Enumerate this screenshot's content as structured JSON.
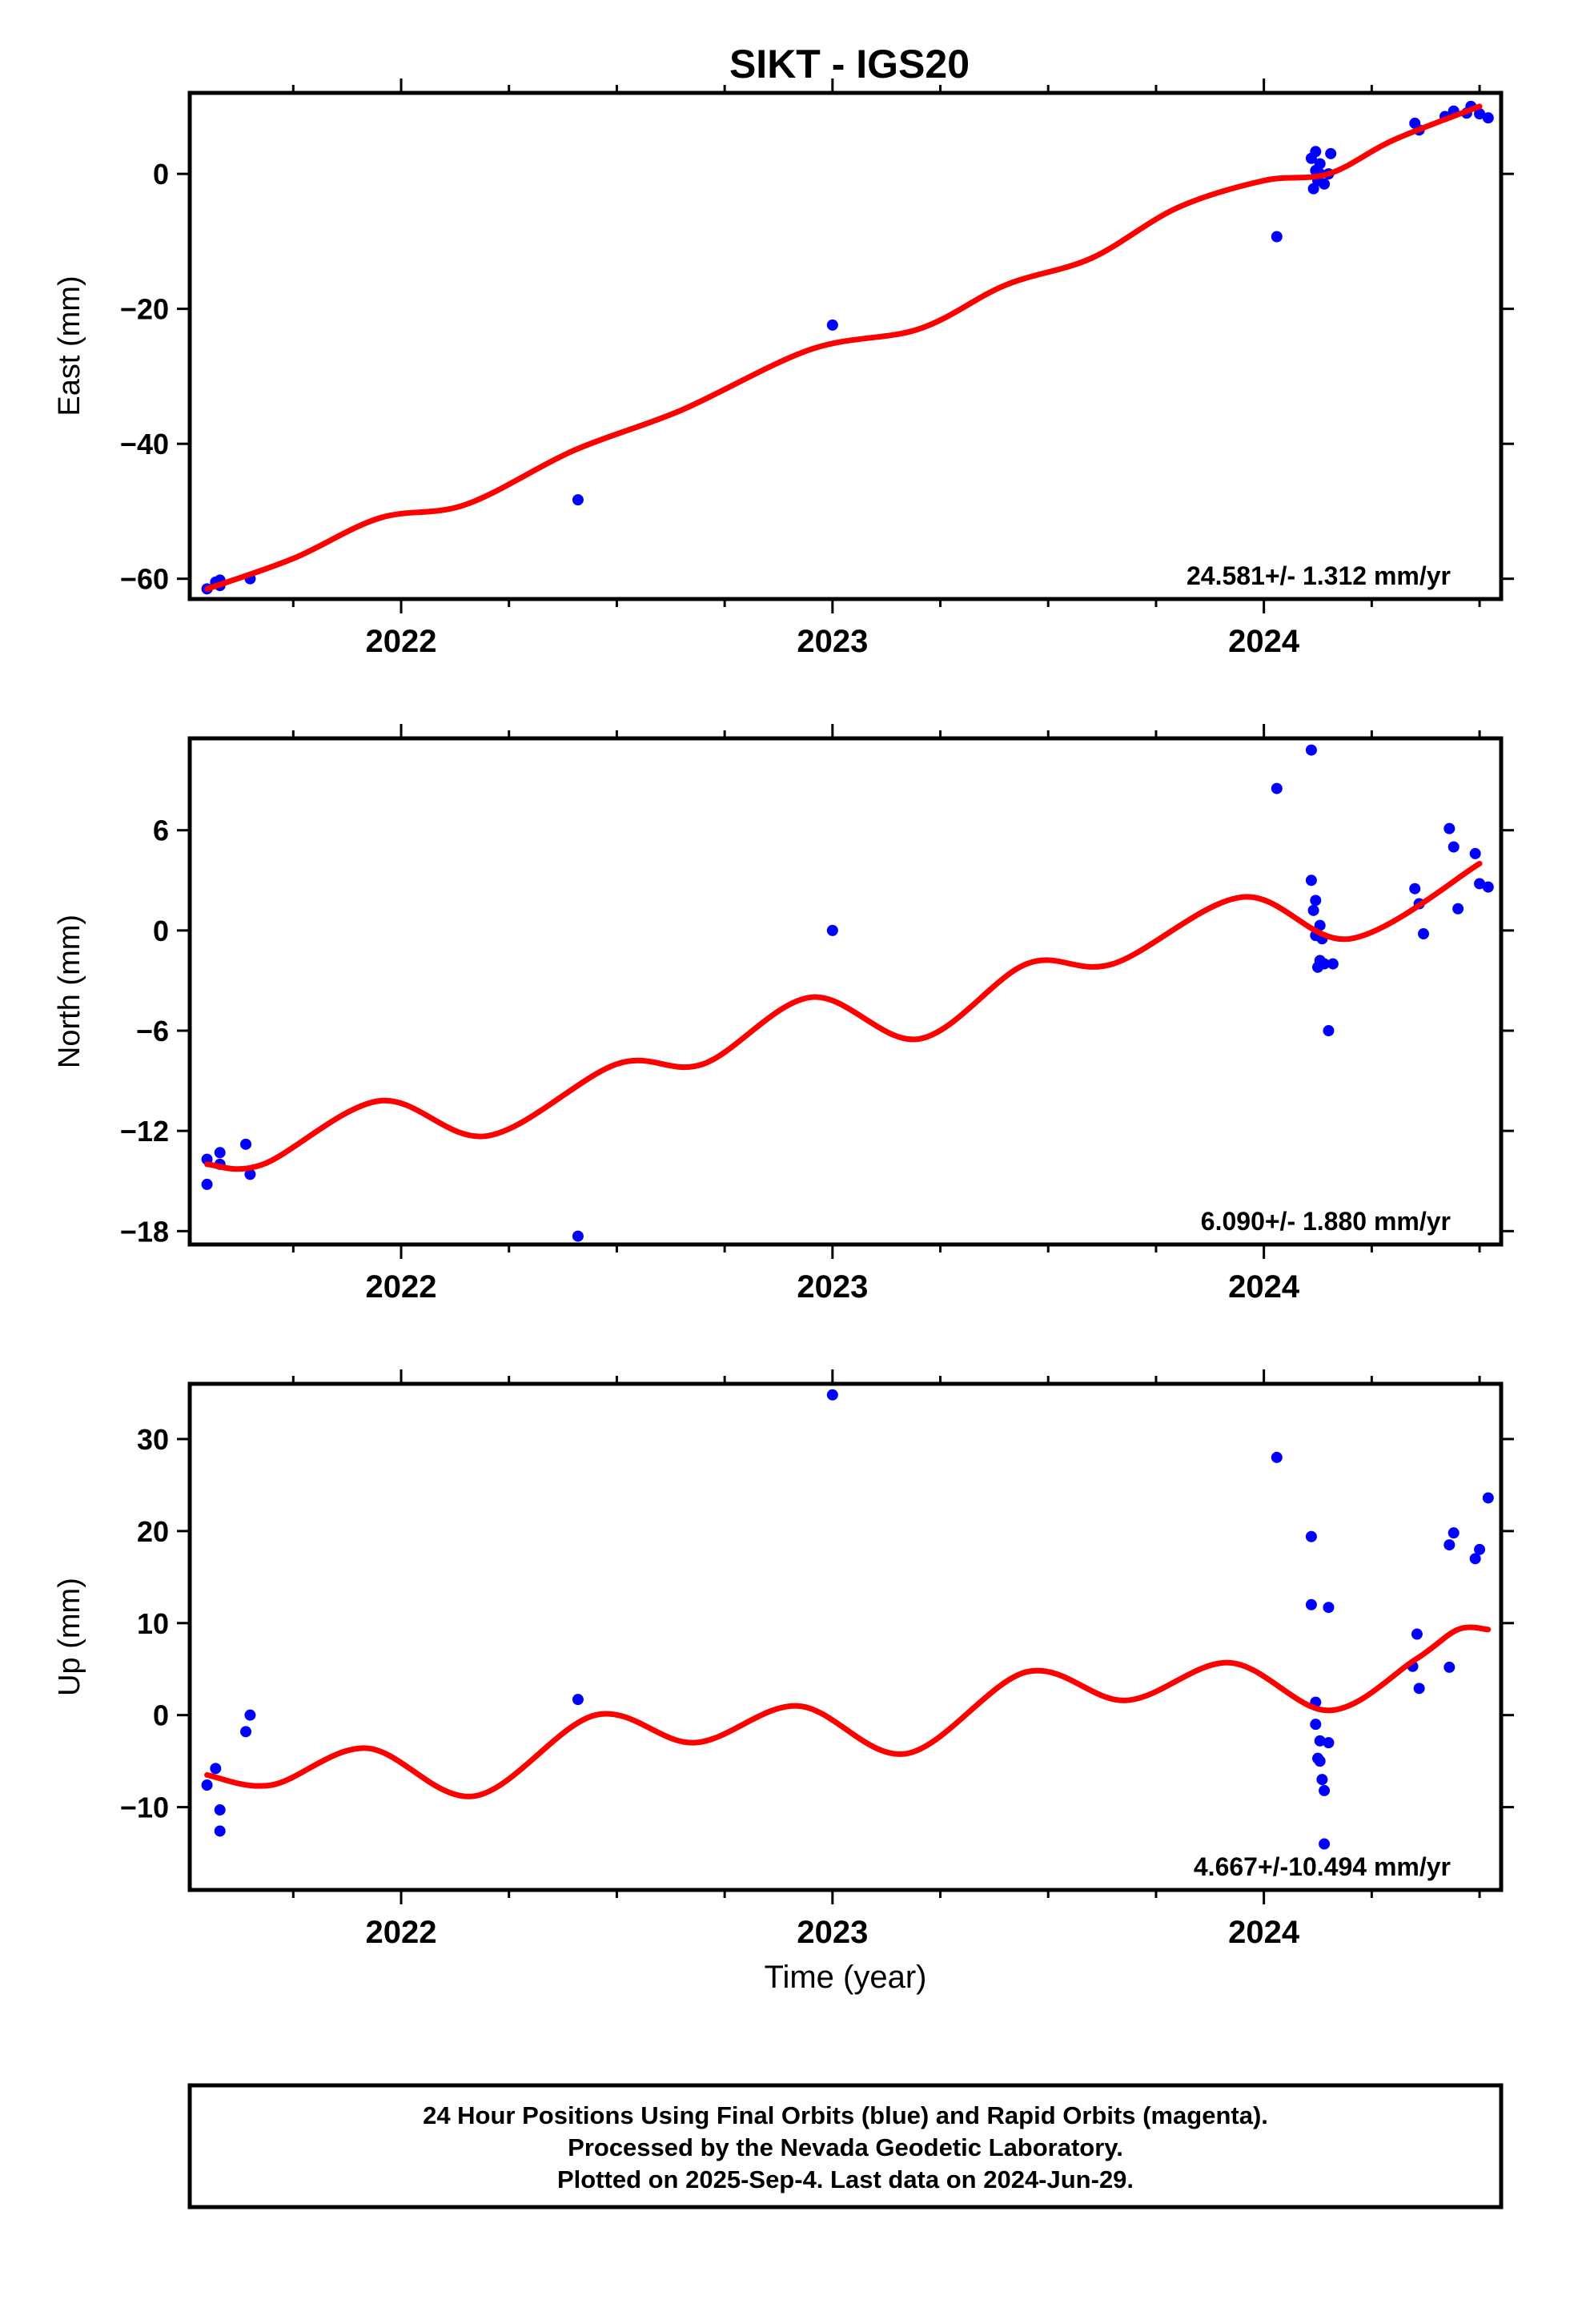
{
  "chart_data": [
    {
      "type": "scatter",
      "title": "SIKT - IGS20",
      "ylabel": "East (mm)",
      "xlabel": "",
      "xlim": [
        2021.51,
        2024.55
      ],
      "ylim": [
        -63,
        12
      ],
      "yticks": [
        0,
        -20,
        -40,
        -60
      ],
      "xticks": [
        2022,
        2023,
        2024
      ],
      "grid": false,
      "annotation": "24.581+/- 1.312 mm/yr",
      "series": [
        {
          "color": "#0000ff",
          "x": [
            2021.55,
            2021.57,
            2021.58,
            2021.58,
            2021.65,
            2022.41,
            2023.0,
            2024.03,
            2024.11,
            2024.115,
            2024.12,
            2024.12,
            2024.125,
            2024.13,
            2024.13,
            2024.14,
            2024.15,
            2024.155,
            2024.35,
            2024.36,
            2024.42,
            2024.44,
            2024.47,
            2024.48,
            2024.5,
            2024.52
          ],
          "y": [
            -61.5,
            -60.5,
            -60.2,
            -61,
            -60,
            -48.3,
            -22.4,
            -9.3,
            2.3,
            -2.2,
            0.5,
            3.3,
            -1,
            0,
            1.5,
            -1.5,
            0,
            3,
            7.5,
            6.5,
            8.5,
            9.3,
            9,
            10,
            8.9,
            8.3
          ]
        },
        {
          "color": "#ff0000",
          "mode": "line",
          "x": [
            2021.55,
            2021.75,
            2021.95,
            2022.15,
            2022.4,
            2022.65,
            2022.95,
            2023.2,
            2023.4,
            2023.6,
            2023.8,
            2024.0,
            2024.15,
            2024.3,
            2024.5
          ],
          "y": [
            -61.5,
            -57,
            -51,
            -49,
            -41,
            -35,
            -26,
            -23,
            -16.5,
            -12.5,
            -5,
            -1,
            0,
            5,
            10
          ]
        }
      ]
    },
    {
      "type": "scatter",
      "title": "",
      "ylabel": "North (mm)",
      "xlabel": "",
      "xlim": [
        2021.51,
        2024.55
      ],
      "ylim": [
        -18.8,
        11.5
      ],
      "yticks": [
        6,
        0,
        -6,
        -12,
        -18
      ],
      "xticks": [
        2022,
        2023,
        2024
      ],
      "grid": false,
      "annotation": "6.090+/- 1.880 mm/yr",
      "series": [
        {
          "color": "#0000ff",
          "x": [
            2021.55,
            2021.55,
            2021.58,
            2021.58,
            2021.64,
            2021.65,
            2022.41,
            2023.0,
            2024.03,
            2024.11,
            2024.11,
            2024.115,
            2024.12,
            2024.12,
            2024.125,
            2024.13,
            2024.13,
            2024.135,
            2024.14,
            2024.15,
            2024.16,
            2024.35,
            2024.36,
            2024.37,
            2024.43,
            2024.44,
            2024.45,
            2024.49,
            2024.5,
            2024.52
          ],
          "y": [
            -13.7,
            -15.2,
            -13.3,
            -14,
            -12.8,
            -14.6,
            -18.3,
            0,
            8.5,
            10.8,
            3,
            1.2,
            -0.3,
            1.8,
            -2.2,
            0.3,
            -1.8,
            -0.5,
            -2,
            -6,
            -2,
            2.5,
            1.6,
            -0.2,
            6.1,
            5,
            1.3,
            4.6,
            2.8,
            2.6
          ]
        },
        {
          "color": "#ff0000",
          "mode": "line",
          "x": [
            2021.55,
            2021.68,
            2021.95,
            2022.2,
            2022.5,
            2022.7,
            2022.95,
            2023.2,
            2023.45,
            2023.65,
            2023.95,
            2024.2,
            2024.5
          ],
          "y": [
            -14,
            -14,
            -10.2,
            -12.3,
            -8,
            -8,
            -4,
            -6.5,
            -2,
            -2,
            2,
            -0.5,
            4
          ]
        }
      ]
    },
    {
      "type": "scatter",
      "title": "",
      "ylabel": "Up (mm)",
      "xlabel": "Time (year)",
      "xlim": [
        2021.51,
        2024.55
      ],
      "ylim": [
        -19,
        36
      ],
      "yticks": [
        30,
        20,
        10,
        0,
        -10
      ],
      "xticks": [
        2022,
        2023,
        2024
      ],
      "grid": false,
      "annotation": "4.667+/-10.494 mm/yr",
      "series": [
        {
          "color": "#0000ff",
          "x": [
            2021.55,
            2021.57,
            2021.58,
            2021.58,
            2021.64,
            2021.65,
            2022.41,
            2023.0,
            2024.03,
            2024.11,
            2024.11,
            2024.12,
            2024.12,
            2024.125,
            2024.13,
            2024.13,
            2024.135,
            2024.14,
            2024.14,
            2024.15,
            2024.15,
            2024.345,
            2024.355,
            2024.36,
            2024.43,
            2024.43,
            2024.44,
            2024.49,
            2024.5,
            2024.52
          ],
          "y": [
            -7.6,
            -5.8,
            -10.3,
            -12.6,
            -1.8,
            0,
            1.7,
            34.8,
            28,
            19.4,
            12,
            1.4,
            -1,
            -4.7,
            -2.8,
            -5,
            -7,
            -8.2,
            -14,
            11.7,
            -3,
            5.3,
            8.8,
            2.9,
            18.5,
            5.2,
            19.8,
            17,
            18,
            23.6
          ]
        },
        {
          "color": "#ff0000",
          "mode": "line",
          "x": [
            2021.55,
            2021.7,
            2021.92,
            2022.17,
            2022.45,
            2022.68,
            2022.92,
            2023.17,
            2023.45,
            2023.68,
            2023.92,
            2024.15,
            2024.35,
            2024.45,
            2024.52
          ],
          "y": [
            -6.5,
            -7.6,
            -3.6,
            -8.8,
            0,
            -3,
            1,
            -4.2,
            4.7,
            1.6,
            5.7,
            0.5,
            6,
            9.3,
            9.3
          ]
        }
      ]
    }
  ],
  "footer": {
    "line1": "24 Hour Positions Using Final Orbits (blue) and Rapid Orbits (magenta).",
    "line2": "Processed by the Nevada Geodetic Laboratory.",
    "line3": "Plotted on 2025-Sep-4. Last data on 2024-Jun-29."
  }
}
